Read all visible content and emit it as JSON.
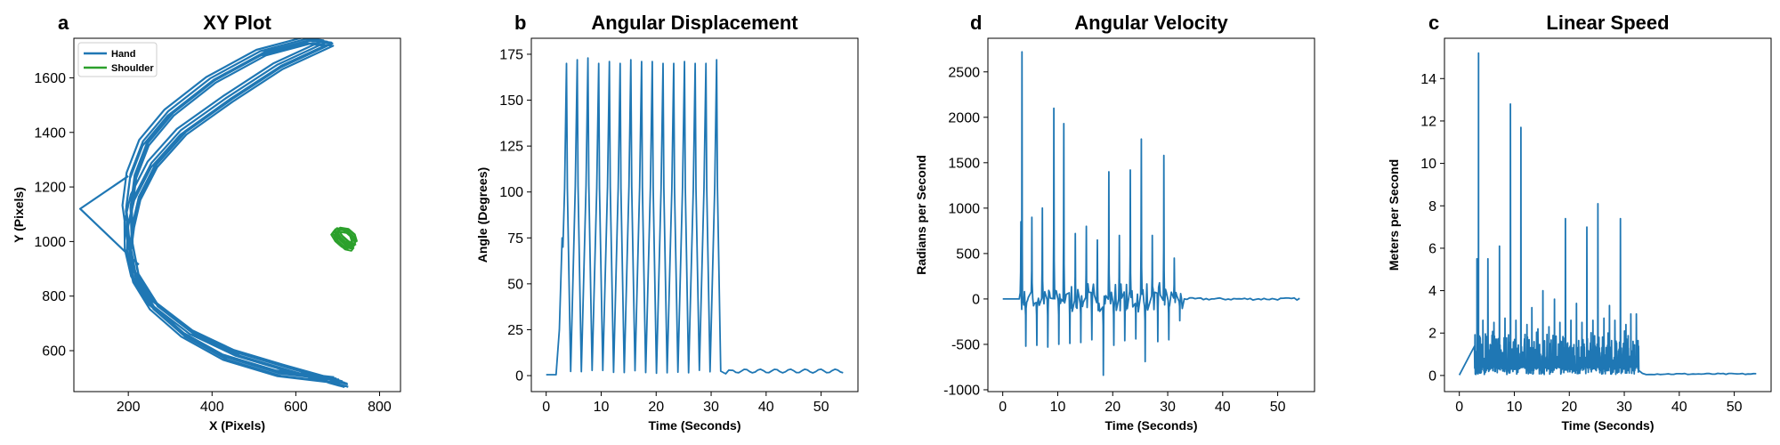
{
  "colors": {
    "hand": "#1f77b4",
    "shoulder": "#2ca02c",
    "series": "#1f77b4"
  },
  "chart_data": [
    {
      "id": "xy",
      "type": "line",
      "panel_letter": "a",
      "title": "XY Plot",
      "xlabel": "X (Pixels)",
      "ylabel": "Y (Pixels)",
      "xlim": [
        70,
        850
      ],
      "ylim": [
        450,
        1745
      ],
      "xticks": [
        200,
        400,
        600,
        800
      ],
      "yticks": [
        600,
        800,
        1000,
        1200,
        1400,
        1600
      ],
      "grid": false,
      "legend": {
        "placement": "top-left",
        "entries": [
          "Hand",
          "Shoulder"
        ]
      },
      "series": [
        {
          "name": "Hand",
          "color": "#1f77b4",
          "points": [
            [
              700,
              490
            ],
            [
              560,
              515
            ],
            [
              430,
              575
            ],
            [
              330,
              660
            ],
            [
              255,
              760
            ],
            [
              215,
              860
            ],
            [
              200,
              960
            ],
            [
              205,
              1060
            ],
            [
              220,
              1160
            ],
            [
              260,
              1280
            ],
            [
              330,
              1400
            ],
            [
              440,
              1520
            ],
            [
              560,
              1640
            ],
            [
              680,
              1725
            ],
            [
              630,
              1735
            ],
            [
              520,
              1690
            ],
            [
              400,
              1590
            ],
            [
              300,
              1470
            ],
            [
              240,
              1360
            ],
            [
              210,
              1240
            ],
            [
              200,
              1120
            ],
            [
              205,
              1000
            ],
            [
              220,
              880
            ],
            [
              265,
              770
            ],
            [
              350,
              670
            ],
            [
              460,
              590
            ],
            [
              580,
              535
            ],
            [
              720,
              475
            ]
          ]
        },
        {
          "name": "Shoulder",
          "color": "#2ca02c",
          "points": [
            [
              695,
              1040
            ],
            [
              705,
              1015
            ],
            [
              720,
              995
            ],
            [
              735,
              985
            ],
            [
              730,
              975
            ],
            [
              715,
              980
            ],
            [
              700,
              1000
            ],
            [
              690,
              1025
            ],
            [
              700,
              1045
            ],
            [
              720,
              1040
            ],
            [
              735,
              1020
            ],
            [
              740,
              995
            ]
          ]
        }
      ]
    },
    {
      "id": "angle",
      "type": "line",
      "panel_letter": "b",
      "title": "Angular Displacement",
      "xlabel": "Time (Seconds)",
      "ylabel": "Angle (Degrees)",
      "xlim": [
        -2.7,
        56.7
      ],
      "ylim": [
        -8.7,
        183.7
      ],
      "xticks": [
        0,
        10,
        20,
        30,
        40,
        50
      ],
      "yticks": [
        0,
        25,
        50,
        75,
        100,
        125,
        150,
        175
      ],
      "grid": false,
      "series": [
        {
          "color": "#1f77b4",
          "peaks": [
            170,
            172,
            173,
            170,
            171,
            170,
            172,
            171,
            171,
            170,
            170,
            171,
            170,
            170,
            172
          ]
        }
      ]
    },
    {
      "id": "angvel",
      "type": "line",
      "panel_letter": "d",
      "title": "Angular Velocity",
      "xlabel": "Time (Seconds)",
      "ylabel": "Radians per Second",
      "xlim": [
        -2.7,
        56.7
      ],
      "ylim": [
        -1020,
        2870
      ],
      "xticks": [
        0,
        10,
        20,
        30,
        40,
        50
      ],
      "yticks": [
        -1000,
        -500,
        0,
        500,
        1000,
        1500,
        2000,
        2500
      ],
      "grid": false,
      "series": [
        {
          "color": "#1f77b4",
          "spikes": [
            [
              3.3,
              850
            ],
            [
              3.5,
              2720
            ],
            [
              5.3,
              900
            ],
            [
              7.2,
              1000
            ],
            [
              9.3,
              2100
            ],
            [
              11.1,
              1930
            ],
            [
              13.2,
              720
            ],
            [
              15.2,
              800
            ],
            [
              17.2,
              650
            ],
            [
              19.3,
              1400
            ],
            [
              21.2,
              700
            ],
            [
              23.2,
              1420
            ],
            [
              25.2,
              1760
            ],
            [
              27.2,
              700
            ],
            [
              29.3,
              1580
            ],
            [
              31.2,
              450
            ]
          ],
          "dips": [
            [
              4.2,
              -520
            ],
            [
              6.2,
              -510
            ],
            [
              8.2,
              -530
            ],
            [
              10.2,
              -500
            ],
            [
              12.2,
              -490
            ],
            [
              14.2,
              -480
            ],
            [
              16.2,
              -450
            ],
            [
              18.3,
              -840
            ],
            [
              20.2,
              -510
            ],
            [
              22.2,
              -460
            ],
            [
              24.2,
              -440
            ],
            [
              25.9,
              -690
            ],
            [
              28.2,
              -470
            ],
            [
              30.2,
              -450
            ],
            [
              32.2,
              -240
            ]
          ]
        }
      ]
    },
    {
      "id": "speed",
      "type": "line",
      "panel_letter": "c",
      "title": "Linear Speed",
      "xlabel": "Time (Seconds)",
      "ylabel": "Meters per Second",
      "xlim": [
        -2.7,
        56.7
      ],
      "ylim": [
        -0.76,
        15.9
      ],
      "xticks": [
        0,
        10,
        20,
        30,
        40,
        50
      ],
      "yticks": [
        0,
        2,
        4,
        6,
        8,
        10,
        12,
        14
      ],
      "grid": false,
      "series": [
        {
          "color": "#1f77b4",
          "spikes": [
            [
              3.2,
              5.5
            ],
            [
              3.5,
              15.2
            ],
            [
              4.3,
              2.6
            ],
            [
              5.2,
              5.5
            ],
            [
              6.3,
              2.5
            ],
            [
              7.3,
              6.1
            ],
            [
              8.3,
              2.7
            ],
            [
              9.3,
              12.8
            ],
            [
              10.3,
              2.6
            ],
            [
              11.2,
              11.7
            ],
            [
              12.3,
              2.4
            ],
            [
              13.2,
              3.2
            ],
            [
              14.3,
              2.2
            ],
            [
              15.2,
              4.0
            ],
            [
              16.3,
              2.3
            ],
            [
              17.3,
              3.6
            ],
            [
              18.3,
              2.5
            ],
            [
              19.3,
              7.4
            ],
            [
              20.3,
              2.6
            ],
            [
              21.3,
              3.4
            ],
            [
              22.3,
              2.5
            ],
            [
              23.2,
              7.0
            ],
            [
              24.3,
              2.6
            ],
            [
              25.2,
              8.1
            ],
            [
              26.3,
              2.7
            ],
            [
              27.3,
              3.3
            ],
            [
              28.3,
              2.6
            ],
            [
              29.3,
              7.4
            ],
            [
              30.3,
              2.4
            ],
            [
              31.2,
              2.9
            ],
            [
              32.2,
              2.9
            ]
          ]
        }
      ]
    }
  ]
}
